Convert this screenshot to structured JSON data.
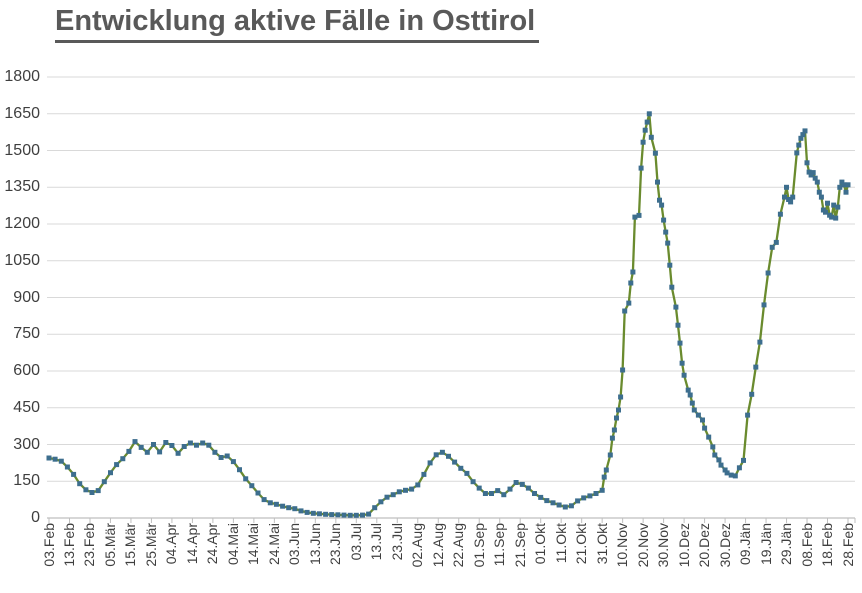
{
  "title": "Entwicklung aktive Fälle in Osttirol",
  "chart_data": {
    "type": "line",
    "title": "Entwicklung aktive Fälle in Osttirol",
    "grid": true,
    "legend": false,
    "x_axis": {
      "tick_interval_days": 10,
      "tick_labels": [
        "03.Feb",
        "13.Feb",
        "23.Feb",
        "05.Mär",
        "15.Mär",
        "25.Mär",
        "04.Apr",
        "14.Apr",
        "24.Apr",
        "04.Mai",
        "14.Mai",
        "24.Mai",
        "03.Jun",
        "13.Jun",
        "23.Jun",
        "03.Jul",
        "13.Jul",
        "23.Jul",
        "02.Aug",
        "12.Aug",
        "22.Aug",
        "01.Sep",
        "11.Sep",
        "21.Sep",
        "01.Okt",
        "11.Okt",
        "21.Okt",
        "31.Okt",
        "10.Nov",
        "20.Nov",
        "30.Nov",
        "10.Dez",
        "20.Dez",
        "30.Dez",
        "09.Jän",
        "19.Jän",
        "29.Jän",
        "08.Feb",
        "18.Feb",
        "28.Feb"
      ]
    },
    "y_axis": {
      "min": 0,
      "max": 1800,
      "step": 150,
      "ticks": [
        0,
        150,
        300,
        450,
        600,
        750,
        900,
        1050,
        1200,
        1350,
        1500,
        1650,
        1800
      ]
    },
    "style": {
      "line_color": "#6a8b2e",
      "marker_color": "#3d6e8e",
      "marker_shape": "square",
      "grid_color": "#d9d9d9",
      "axis_color": "#bfbfbf",
      "title_color": "#595959",
      "label_color": "#3f3f3f"
    },
    "series": [
      {
        "x_unit": "days_since_first_label",
        "points_day_value": [
          [
            0,
            245
          ],
          [
            3,
            240
          ],
          [
            6,
            232
          ],
          [
            9,
            208
          ],
          [
            12,
            178
          ],
          [
            15,
            140
          ],
          [
            18,
            115
          ],
          [
            21,
            104
          ],
          [
            24,
            112
          ],
          [
            27,
            148
          ],
          [
            30,
            185
          ],
          [
            33,
            218
          ],
          [
            36,
            242
          ],
          [
            39,
            272
          ],
          [
            42,
            312
          ],
          [
            45,
            288
          ],
          [
            48,
            268
          ],
          [
            51,
            300
          ],
          [
            54,
            270
          ],
          [
            57,
            308
          ],
          [
            60,
            296
          ],
          [
            63,
            264
          ],
          [
            66,
            292
          ],
          [
            69,
            306
          ],
          [
            72,
            297
          ],
          [
            75,
            306
          ],
          [
            78,
            297
          ],
          [
            81,
            268
          ],
          [
            84,
            247
          ],
          [
            87,
            253
          ],
          [
            90,
            230
          ],
          [
            93,
            197
          ],
          [
            96,
            160
          ],
          [
            99,
            132
          ],
          [
            102,
            102
          ],
          [
            105,
            75
          ],
          [
            108,
            62
          ],
          [
            111,
            56
          ],
          [
            114,
            48
          ],
          [
            117,
            42
          ],
          [
            120,
            38
          ],
          [
            123,
            29
          ],
          [
            126,
            23
          ],
          [
            129,
            19
          ],
          [
            132,
            17
          ],
          [
            135,
            15
          ],
          [
            138,
            14
          ],
          [
            141,
            13
          ],
          [
            144,
            12
          ],
          [
            147,
            11
          ],
          [
            150,
            11
          ],
          [
            153,
            12
          ],
          [
            156,
            16
          ],
          [
            159,
            42
          ],
          [
            162,
            66
          ],
          [
            165,
            85
          ],
          [
            168,
            95
          ],
          [
            171,
            107
          ],
          [
            174,
            113
          ],
          [
            177,
            118
          ],
          [
            180,
            135
          ],
          [
            183,
            178
          ],
          [
            186,
            225
          ],
          [
            189,
            258
          ],
          [
            192,
            268
          ],
          [
            195,
            252
          ],
          [
            198,
            228
          ],
          [
            201,
            203
          ],
          [
            204,
            182
          ],
          [
            207,
            148
          ],
          [
            210,
            122
          ],
          [
            213,
            100
          ],
          [
            216,
            100
          ],
          [
            219,
            112
          ],
          [
            222,
            95
          ],
          [
            225,
            118
          ],
          [
            228,
            145
          ],
          [
            231,
            137
          ],
          [
            234,
            122
          ],
          [
            237,
            100
          ],
          [
            240,
            84
          ],
          [
            243,
            71
          ],
          [
            246,
            62
          ],
          [
            249,
            53
          ],
          [
            252,
            45
          ],
          [
            255,
            50
          ],
          [
            258,
            70
          ],
          [
            261,
            82
          ],
          [
            264,
            90
          ],
          [
            267,
            100
          ],
          [
            270,
            113
          ],
          [
            271,
            167
          ],
          [
            272,
            196
          ],
          [
            274,
            257
          ],
          [
            275,
            326
          ],
          [
            276,
            359
          ],
          [
            277,
            408
          ],
          [
            278,
            441
          ],
          [
            279,
            494
          ],
          [
            280,
            604
          ],
          [
            281,
            845
          ],
          [
            283,
            877
          ],
          [
            284,
            959
          ],
          [
            285,
            1004
          ],
          [
            286,
            1228
          ],
          [
            288,
            1235
          ],
          [
            289,
            1428
          ],
          [
            290,
            1534
          ],
          [
            291,
            1583
          ],
          [
            292,
            1616
          ],
          [
            293,
            1650
          ],
          [
            294,
            1554
          ],
          [
            296,
            1489
          ],
          [
            297,
            1371
          ],
          [
            298,
            1297
          ],
          [
            299,
            1277
          ],
          [
            300,
            1216
          ],
          [
            301,
            1167
          ],
          [
            302,
            1122
          ],
          [
            303,
            1032
          ],
          [
            304,
            942
          ],
          [
            306,
            861
          ],
          [
            307,
            787
          ],
          [
            308,
            714
          ],
          [
            309,
            632
          ],
          [
            310,
            583
          ],
          [
            312,
            522
          ],
          [
            313,
            502
          ],
          [
            314,
            469
          ],
          [
            315,
            441
          ],
          [
            317,
            420
          ],
          [
            319,
            400
          ],
          [
            320,
            367
          ],
          [
            322,
            330
          ],
          [
            324,
            290
          ],
          [
            325,
            257
          ],
          [
            327,
            237
          ],
          [
            328,
            216
          ],
          [
            330,
            196
          ],
          [
            331,
            184
          ],
          [
            333,
            175
          ],
          [
            335,
            172
          ],
          [
            337,
            205
          ],
          [
            339,
            235
          ],
          [
            341,
            420
          ],
          [
            343,
            505
          ],
          [
            345,
            616
          ],
          [
            347,
            718
          ],
          [
            349,
            870
          ],
          [
            351,
            1000
          ],
          [
            353,
            1105
          ],
          [
            355,
            1125
          ],
          [
            357,
            1240
          ],
          [
            359,
            1310
          ],
          [
            360,
            1350
          ],
          [
            361,
            1300
          ],
          [
            362,
            1290
          ],
          [
            363,
            1310
          ],
          [
            365,
            1490
          ],
          [
            366,
            1522
          ],
          [
            367,
            1550
          ],
          [
            368,
            1565
          ],
          [
            369,
            1580
          ],
          [
            370,
            1450
          ],
          [
            371,
            1412
          ],
          [
            372,
            1400
          ],
          [
            373,
            1410
          ],
          [
            374,
            1387
          ],
          [
            375,
            1371
          ],
          [
            376,
            1330
          ],
          [
            377,
            1310
          ],
          [
            378,
            1257
          ],
          [
            379,
            1248
          ],
          [
            380,
            1285
          ],
          [
            381,
            1236
          ],
          [
            382,
            1228
          ],
          [
            383,
            1277
          ],
          [
            384,
            1224
          ],
          [
            385,
            1269
          ],
          [
            386,
            1350
          ],
          [
            387,
            1371
          ],
          [
            388,
            1360
          ],
          [
            389,
            1330
          ],
          [
            390,
            1360
          ]
        ]
      }
    ]
  }
}
